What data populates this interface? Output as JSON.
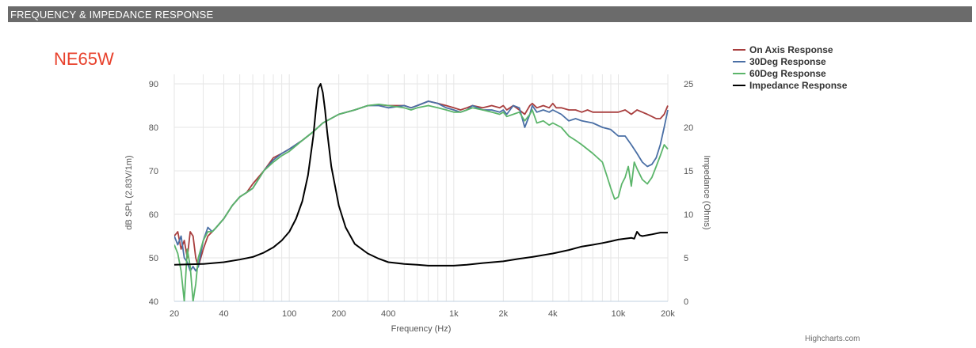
{
  "header": {
    "title": "FREQUENCY & IMPEDANCE RESPONSE"
  },
  "model": {
    "name": "NE65W"
  },
  "credit": "Highcharts.com",
  "chart_data": {
    "type": "line",
    "xlabel": "Frequency (Hz)",
    "ylabel": "dB SPL (2.83V/1m)",
    "y2label": "Impedance (Ohms)",
    "xscale": "log",
    "xlim": [
      20,
      20000
    ],
    "ylim": [
      40,
      90
    ],
    "y2lim": [
      0,
      25
    ],
    "x_ticks": [
      {
        "value": 20,
        "label": "20"
      },
      {
        "value": 40,
        "label": "40"
      },
      {
        "value": 100,
        "label": "100"
      },
      {
        "value": 200,
        "label": "200"
      },
      {
        "value": 400,
        "label": "400"
      },
      {
        "value": 1000,
        "label": "1k"
      },
      {
        "value": 2000,
        "label": "2k"
      },
      {
        "value": 4000,
        "label": "4k"
      },
      {
        "value": 10000,
        "label": "10k"
      },
      {
        "value": 20000,
        "label": "20k"
      }
    ],
    "y_ticks": [
      40,
      50,
      60,
      70,
      80,
      90
    ],
    "y2_ticks": [
      0,
      5,
      10,
      15,
      20,
      25
    ],
    "grid": "minor-log-x",
    "legend_position": "top-right",
    "series": [
      {
        "name": "On Axis Response",
        "color": "#a83e3e",
        "axis": "left",
        "points": [
          [
            20,
            55
          ],
          [
            21,
            56
          ],
          [
            22,
            52
          ],
          [
            23,
            54
          ],
          [
            24,
            50
          ],
          [
            25,
            56
          ],
          [
            26,
            55
          ],
          [
            27,
            50
          ],
          [
            28,
            48
          ],
          [
            30,
            52
          ],
          [
            32,
            55
          ],
          [
            34,
            56
          ],
          [
            36,
            57
          ],
          [
            40,
            59
          ],
          [
            45,
            62
          ],
          [
            50,
            64
          ],
          [
            55,
            65
          ],
          [
            60,
            67
          ],
          [
            70,
            70
          ],
          [
            80,
            73
          ],
          [
            90,
            74
          ],
          [
            100,
            75
          ],
          [
            120,
            77
          ],
          [
            140,
            79
          ],
          [
            160,
            81
          ],
          [
            200,
            83
          ],
          [
            250,
            84
          ],
          [
            300,
            85
          ],
          [
            350,
            85.2
          ],
          [
            400,
            85
          ],
          [
            500,
            85
          ],
          [
            550,
            84.5
          ],
          [
            600,
            85
          ],
          [
            700,
            86
          ],
          [
            800,
            85.5
          ],
          [
            900,
            85
          ],
          [
            1000,
            84.5
          ],
          [
            1100,
            84
          ],
          [
            1200,
            84.5
          ],
          [
            1300,
            85
          ],
          [
            1500,
            84.5
          ],
          [
            1700,
            85
          ],
          [
            1900,
            84.5
          ],
          [
            2000,
            85
          ],
          [
            2100,
            84
          ],
          [
            2300,
            85
          ],
          [
            2500,
            84
          ],
          [
            2700,
            83
          ],
          [
            2900,
            85
          ],
          [
            3000,
            85.5
          ],
          [
            3200,
            84.5
          ],
          [
            3500,
            85
          ],
          [
            3800,
            84.5
          ],
          [
            4000,
            85.5
          ],
          [
            4200,
            84.5
          ],
          [
            4500,
            84.5
          ],
          [
            5000,
            84
          ],
          [
            5500,
            84
          ],
          [
            6000,
            83.5
          ],
          [
            6500,
            84
          ],
          [
            7000,
            83.5
          ],
          [
            8000,
            83.5
          ],
          [
            9000,
            83.5
          ],
          [
            10000,
            83.5
          ],
          [
            11000,
            84
          ],
          [
            12000,
            83
          ],
          [
            13000,
            84
          ],
          [
            14000,
            83.5
          ],
          [
            15000,
            83
          ],
          [
            16000,
            82.5
          ],
          [
            17000,
            82
          ],
          [
            18000,
            82
          ],
          [
            19000,
            83
          ],
          [
            20000,
            85
          ]
        ]
      },
      {
        "name": "30Deg Response",
        "color": "#4a6fa5",
        "axis": "left",
        "points": [
          [
            20,
            55
          ],
          [
            21,
            53
          ],
          [
            22,
            55
          ],
          [
            23,
            50
          ],
          [
            24,
            49
          ],
          [
            25,
            47
          ],
          [
            26,
            48
          ],
          [
            27,
            47
          ],
          [
            28,
            48
          ],
          [
            30,
            54
          ],
          [
            32,
            57
          ],
          [
            34,
            56
          ],
          [
            36,
            57
          ],
          [
            40,
            59
          ],
          [
            45,
            62
          ],
          [
            50,
            64
          ],
          [
            55,
            65
          ],
          [
            60,
            66
          ],
          [
            70,
            70
          ],
          [
            80,
            72.5
          ],
          [
            90,
            74
          ],
          [
            100,
            75
          ],
          [
            120,
            77
          ],
          [
            140,
            79
          ],
          [
            160,
            81
          ],
          [
            200,
            83
          ],
          [
            250,
            84
          ],
          [
            300,
            85
          ],
          [
            350,
            85
          ],
          [
            400,
            84.5
          ],
          [
            500,
            85
          ],
          [
            550,
            84.5
          ],
          [
            600,
            85
          ],
          [
            700,
            86
          ],
          [
            800,
            85.5
          ],
          [
            900,
            84.5
          ],
          [
            1000,
            84
          ],
          [
            1100,
            83.5
          ],
          [
            1200,
            84
          ],
          [
            1300,
            85
          ],
          [
            1500,
            84
          ],
          [
            1700,
            84
          ],
          [
            1900,
            83.5
          ],
          [
            2000,
            84
          ],
          [
            2100,
            83
          ],
          [
            2300,
            85
          ],
          [
            2500,
            84.5
          ],
          [
            2700,
            80
          ],
          [
            2900,
            83
          ],
          [
            3000,
            85
          ],
          [
            3200,
            83.5
          ],
          [
            3500,
            84
          ],
          [
            3800,
            83.5
          ],
          [
            4000,
            84
          ],
          [
            4500,
            83
          ],
          [
            5000,
            81.5
          ],
          [
            5500,
            82
          ],
          [
            6000,
            81.5
          ],
          [
            7000,
            81
          ],
          [
            8000,
            80
          ],
          [
            9000,
            79.5
          ],
          [
            10000,
            78
          ],
          [
            11000,
            78
          ],
          [
            12000,
            76
          ],
          [
            13000,
            74
          ],
          [
            14000,
            72
          ],
          [
            15000,
            71
          ],
          [
            16000,
            71.5
          ],
          [
            17000,
            73
          ],
          [
            18000,
            76
          ],
          [
            19000,
            80
          ],
          [
            20000,
            84
          ]
        ]
      },
      {
        "name": "60Deg Response",
        "color": "#5bb56a",
        "axis": "left",
        "points": [
          [
            20,
            53
          ],
          [
            21,
            51
          ],
          [
            22,
            47
          ],
          [
            23,
            40
          ],
          [
            24,
            52
          ],
          [
            25,
            48
          ],
          [
            26,
            40
          ],
          [
            27,
            44
          ],
          [
            28,
            50
          ],
          [
            30,
            54
          ],
          [
            32,
            56
          ],
          [
            34,
            56
          ],
          [
            36,
            57
          ],
          [
            40,
            59
          ],
          [
            45,
            62
          ],
          [
            50,
            64
          ],
          [
            55,
            65
          ],
          [
            60,
            66
          ],
          [
            70,
            70
          ],
          [
            80,
            72
          ],
          [
            90,
            73.5
          ],
          [
            100,
            74.5
          ],
          [
            120,
            77
          ],
          [
            140,
            79
          ],
          [
            160,
            81
          ],
          [
            200,
            83
          ],
          [
            250,
            84
          ],
          [
            300,
            85
          ],
          [
            350,
            85.3
          ],
          [
            400,
            85
          ],
          [
            500,
            84.5
          ],
          [
            550,
            84
          ],
          [
            600,
            84.5
          ],
          [
            700,
            85
          ],
          [
            800,
            84.5
          ],
          [
            900,
            84
          ],
          [
            1000,
            83.5
          ],
          [
            1100,
            83.5
          ],
          [
            1200,
            84
          ],
          [
            1300,
            84.5
          ],
          [
            1500,
            84
          ],
          [
            1700,
            83.5
          ],
          [
            1900,
            83
          ],
          [
            2000,
            83.5
          ],
          [
            2100,
            82.5
          ],
          [
            2300,
            83
          ],
          [
            2500,
            83.5
          ],
          [
            2700,
            81.5
          ],
          [
            2900,
            83
          ],
          [
            3000,
            84
          ],
          [
            3200,
            81
          ],
          [
            3500,
            81.5
          ],
          [
            3800,
            80.5
          ],
          [
            4000,
            81
          ],
          [
            4500,
            80
          ],
          [
            5000,
            78
          ],
          [
            5500,
            77
          ],
          [
            6000,
            76
          ],
          [
            7000,
            74
          ],
          [
            8000,
            72
          ],
          [
            8500,
            69
          ],
          [
            9000,
            66
          ],
          [
            9500,
            63.5
          ],
          [
            10000,
            64
          ],
          [
            10500,
            67
          ],
          [
            11000,
            68.5
          ],
          [
            11500,
            71
          ],
          [
            12000,
            66.5
          ],
          [
            12500,
            72
          ],
          [
            13000,
            70.5
          ],
          [
            14000,
            68
          ],
          [
            15000,
            67
          ],
          [
            16000,
            68.5
          ],
          [
            17000,
            71
          ],
          [
            18000,
            73.5
          ],
          [
            19000,
            76
          ],
          [
            20000,
            75
          ]
        ]
      },
      {
        "name": "Impedance Response",
        "color": "#000000",
        "axis": "right",
        "points": [
          [
            20,
            4.2
          ],
          [
            30,
            4.3
          ],
          [
            40,
            4.5
          ],
          [
            50,
            4.8
          ],
          [
            60,
            5.1
          ],
          [
            70,
            5.6
          ],
          [
            80,
            6.2
          ],
          [
            90,
            7
          ],
          [
            100,
            8
          ],
          [
            110,
            9.5
          ],
          [
            120,
            11.5
          ],
          [
            130,
            14.5
          ],
          [
            140,
            19
          ],
          [
            145,
            22
          ],
          [
            150,
            24.5
          ],
          [
            155,
            25
          ],
          [
            160,
            24
          ],
          [
            165,
            22
          ],
          [
            170,
            19.5
          ],
          [
            180,
            15.5
          ],
          [
            200,
            11
          ],
          [
            220,
            8.5
          ],
          [
            250,
            6.6
          ],
          [
            300,
            5.5
          ],
          [
            350,
            4.9
          ],
          [
            400,
            4.5
          ],
          [
            500,
            4.3
          ],
          [
            600,
            4.2
          ],
          [
            700,
            4.1
          ],
          [
            800,
            4.1
          ],
          [
            1000,
            4.1
          ],
          [
            1200,
            4.2
          ],
          [
            1500,
            4.4
          ],
          [
            2000,
            4.6
          ],
          [
            2500,
            4.9
          ],
          [
            3000,
            5.1
          ],
          [
            4000,
            5.5
          ],
          [
            5000,
            5.9
          ],
          [
            6000,
            6.3
          ],
          [
            7000,
            6.5
          ],
          [
            8000,
            6.7
          ],
          [
            9000,
            6.9
          ],
          [
            10000,
            7.1
          ],
          [
            11000,
            7.2
          ],
          [
            12000,
            7.3
          ],
          [
            12500,
            7.2
          ],
          [
            13000,
            8
          ],
          [
            13500,
            7.6
          ],
          [
            14000,
            7.5
          ],
          [
            15000,
            7.6
          ],
          [
            16000,
            7.7
          ],
          [
            18000,
            7.9
          ],
          [
            20000,
            7.9
          ]
        ]
      }
    ]
  }
}
